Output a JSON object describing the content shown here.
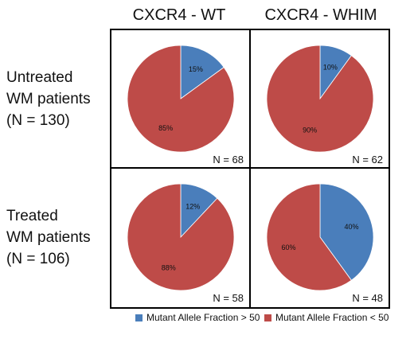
{
  "column_headers": [
    "CXCR4 - WT",
    "CXCR4 - WHIM"
  ],
  "row_labels": [
    [
      "Untreated",
      "WM patients",
      "(N = 130)"
    ],
    [
      "Treated",
      "WM patients",
      "(N = 106)"
    ]
  ],
  "colors": {
    "above": "#4a7ebb",
    "below": "#be4b48"
  },
  "chart_data": {
    "type": "pie",
    "categories": [
      "Mutant Allele Fraction > 50",
      "Mutant Allele Fraction < 50"
    ],
    "charts": [
      {
        "row": "Untreated",
        "column": "CXCR4 - WT",
        "values": [
          15,
          85
        ],
        "labels": [
          "15%",
          "85%"
        ],
        "n": "N = 68"
      },
      {
        "row": "Untreated",
        "column": "CXCR4 - WHIM",
        "values": [
          10,
          90
        ],
        "labels": [
          "10%",
          "90%"
        ],
        "n": "N = 62"
      },
      {
        "row": "Treated",
        "column": "CXCR4 - WT",
        "values": [
          12,
          88
        ],
        "labels": [
          "12%",
          "88%"
        ],
        "n": "N = 58"
      },
      {
        "row": "Treated",
        "column": "CXCR4 - WHIM",
        "values": [
          40,
          60
        ],
        "labels": [
          "40%",
          "60%"
        ],
        "n": "N = 48"
      }
    ],
    "legend": [
      "Mutant Allele Fraction > 50",
      "Mutant Allele Fraction < 50"
    ],
    "legend_position": "bottom"
  }
}
